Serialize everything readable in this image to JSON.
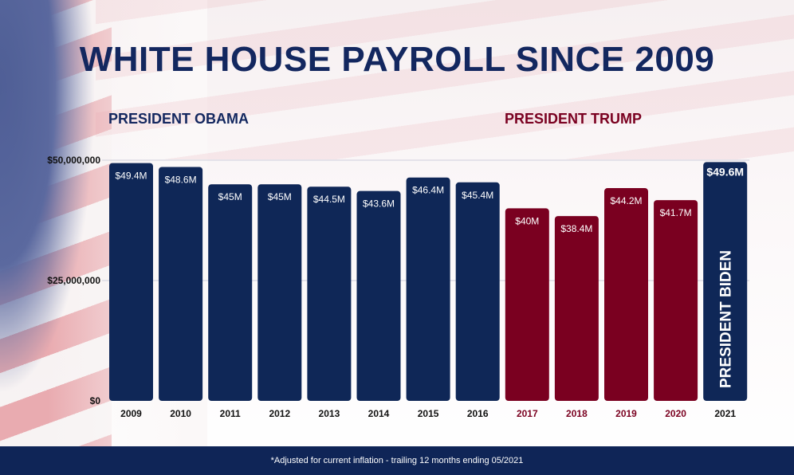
{
  "title": "WHITE HOUSE PAYROLL SINCE 2009",
  "labels": {
    "obama": "PRESIDENT OBAMA",
    "trump": "PRESIDENT TRUMP",
    "biden": "PRESIDENT BIDEN"
  },
  "footnote": "*Adjusted for current inflation - trailing 12 months ending 05/2021",
  "colors": {
    "obama": "#0f2757",
    "trump": "#7a0020",
    "biden": "#0f2757"
  },
  "chart_data": {
    "type": "bar",
    "title": "WHITE HOUSE PAYROLL SINCE 2009",
    "categories": [
      "2009",
      "2010",
      "2011",
      "2012",
      "2013",
      "2014",
      "2015",
      "2016",
      "2017",
      "2018",
      "2019",
      "2020",
      "2021"
    ],
    "values": [
      49.4,
      48.6,
      45,
      45,
      44.5,
      43.6,
      46.4,
      45.4,
      40,
      38.4,
      44.2,
      41.7,
      49.6
    ],
    "value_unit": "million USD",
    "data_labels": [
      "$49.4M",
      "$48.6M",
      "$45M",
      "$45M",
      "$44.5M",
      "$43.6M",
      "$46.4M",
      "$45.4M",
      "$40M",
      "$38.4M",
      "$44.2M",
      "$41.7M",
      "$49.6M"
    ],
    "president": [
      "obama",
      "obama",
      "obama",
      "obama",
      "obama",
      "obama",
      "obama",
      "obama",
      "trump",
      "trump",
      "trump",
      "trump",
      "biden"
    ],
    "yticks": [
      {
        "value": 0,
        "label": "$0"
      },
      {
        "value": 25,
        "label": "$25,000,000"
      },
      {
        "value": 50,
        "label": "$50,000,000"
      }
    ],
    "ylim": [
      0,
      50
    ],
    "grid": true,
    "xlabel": "",
    "ylabel": ""
  }
}
